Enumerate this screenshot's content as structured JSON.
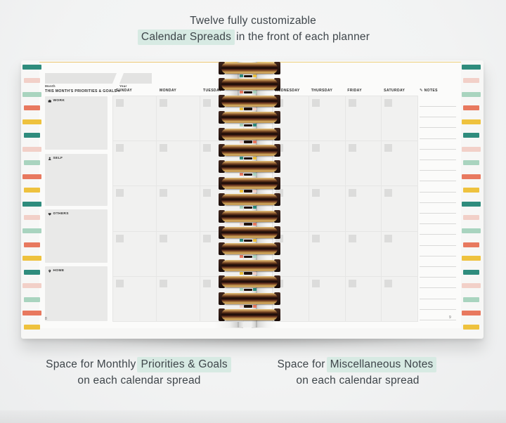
{
  "top_caption": {
    "line1": "Twelve fully customizable",
    "highlight": "Calendar Spreads",
    "rest": "in the front of each planner"
  },
  "bottom_captions": {
    "left": {
      "pre": "Space for Monthly",
      "highlight": "Priorities & Goals",
      "line2": "on each calendar spread"
    },
    "right": {
      "pre": "Space for",
      "highlight": "Miscellaneous Notes",
      "line2": "on each calendar spread"
    }
  },
  "planner": {
    "left_page": {
      "month_label": "Month",
      "year_label": "Year",
      "priorities_header": "THIS MONTH'S PRIORITIES & GOALS ▾",
      "sections": [
        {
          "icon": "briefcase-icon",
          "label": "WORK"
        },
        {
          "icon": "person-icon",
          "label": "SELF"
        },
        {
          "icon": "heart-icon",
          "label": "OTHERS"
        },
        {
          "icon": "map-pin-icon",
          "label": "HOME"
        }
      ],
      "day_headers": [
        "SUNDAY",
        "MONDAY",
        "TUESDAY"
      ],
      "page_number": "8"
    },
    "right_page": {
      "day_headers": [
        "WEDNESDAY",
        "THURSDAY",
        "FRIDAY",
        "SATURDAY"
      ],
      "notes_icon": "✎",
      "notes_label": "NOTES",
      "page_number": "9"
    },
    "calendar_rows": 5,
    "notes_line_count": 21
  },
  "colors": {
    "caption_text": "#3e454a",
    "highlight": "#d7eae3",
    "stripe_palette": [
      "#2f8c7d",
      "#f2d0c8",
      "#a9d4bf",
      "#e8795f",
      "#eec23e"
    ],
    "gap_chip_palette": [
      "#2f8c7d",
      "#e8795f",
      "#eec23e",
      "#a9d4bf",
      "#f2d0c8"
    ],
    "coil_gold": "#c89a55",
    "coil_dark": "#2a1410"
  },
  "decor": {
    "stripe_count_per_side": 20,
    "coil_count": 16
  }
}
